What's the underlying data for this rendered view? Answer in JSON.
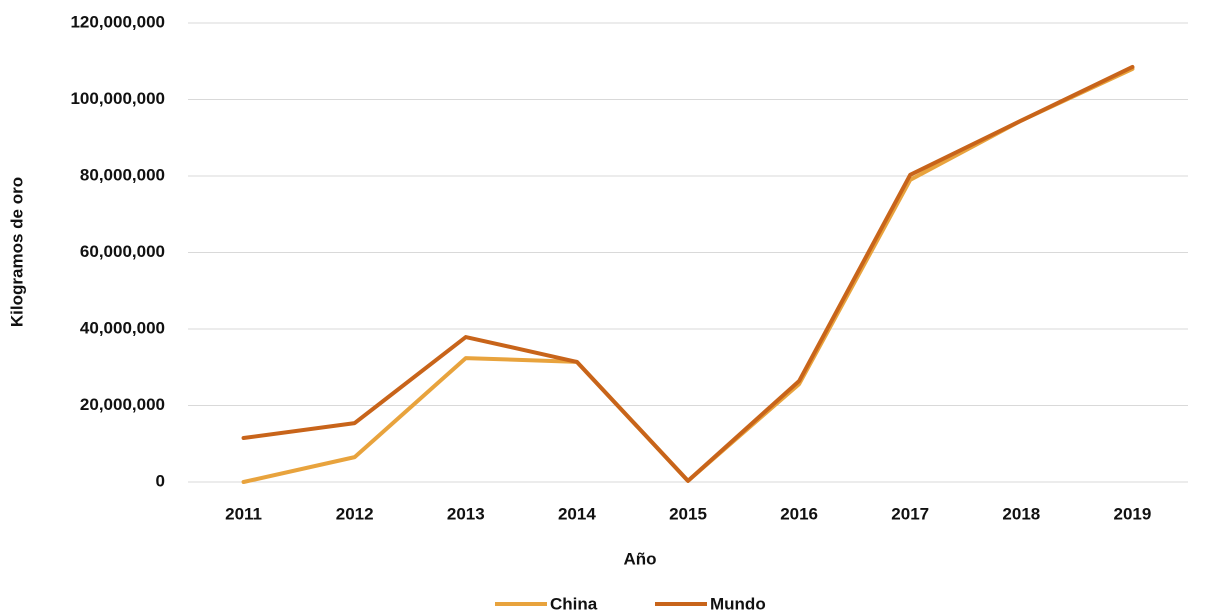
{
  "chart_data": {
    "type": "line",
    "x_label": "Año",
    "y_label": "Kilogramos de oro",
    "categories": [
      "2011",
      "2012",
      "2013",
      "2014",
      "2015",
      "2016",
      "2017",
      "2018",
      "2019"
    ],
    "series": [
      {
        "name": "China",
        "color": "#e8a33d",
        "values": [
          0,
          6500000,
          32400000,
          31400000,
          300000,
          25600000,
          79000000,
          94500000,
          108000000
        ]
      },
      {
        "name": "Mundo",
        "color": "#c8641a",
        "values": [
          11500000,
          15400000,
          37900000,
          31400000,
          300000,
          26400000,
          80300000,
          94500000,
          108500000
        ]
      }
    ],
    "ylim": [
      0,
      120000000
    ],
    "yticks": [
      0,
      {
        "value": 20000000,
        "label": "20,000,000"
      },
      {
        "value": 40000000,
        "label": "40,000,000"
      },
      {
        "value": 60000000,
        "label": "60,000,000"
      },
      {
        "value": 80000000,
        "label": "80,000,000"
      },
      {
        "value": 100000000,
        "label": "100,000,000"
      },
      {
        "value": 120000000,
        "label": "120,000,000"
      }
    ],
    "grid": true,
    "legend": "bottom"
  }
}
